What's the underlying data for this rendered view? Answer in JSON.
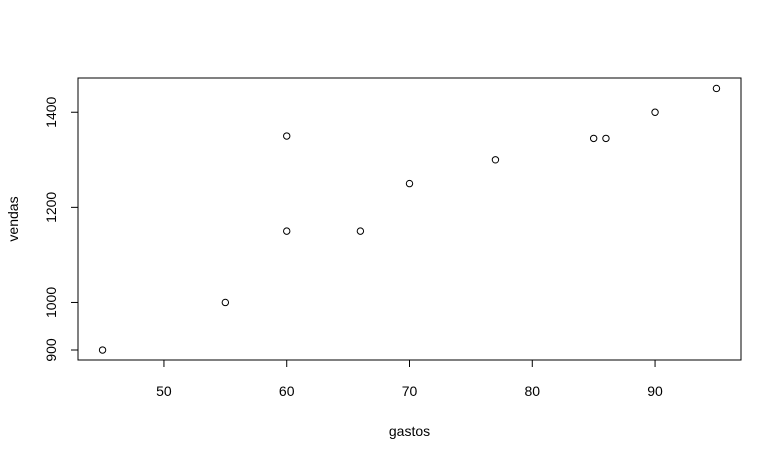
{
  "chart_data": {
    "type": "scatter",
    "title": "",
    "xlabel": "gastos",
    "ylabel": "vendas",
    "xlim": [
      43,
      97
    ],
    "ylim": [
      879,
      1472
    ],
    "x_ticks": [
      50,
      60,
      70,
      80,
      90
    ],
    "y_ticks": [
      900,
      1000,
      1200,
      1400
    ],
    "grid": false,
    "marker": "open-circle",
    "points": [
      {
        "x": 45,
        "y": 900
      },
      {
        "x": 55,
        "y": 1000
      },
      {
        "x": 60,
        "y": 1150
      },
      {
        "x": 60,
        "y": 1350
      },
      {
        "x": 66,
        "y": 1150
      },
      {
        "x": 70,
        "y": 1250
      },
      {
        "x": 77,
        "y": 1300
      },
      {
        "x": 85,
        "y": 1345
      },
      {
        "x": 86,
        "y": 1345
      },
      {
        "x": 90,
        "y": 1400
      },
      {
        "x": 95,
        "y": 1450
      }
    ]
  }
}
